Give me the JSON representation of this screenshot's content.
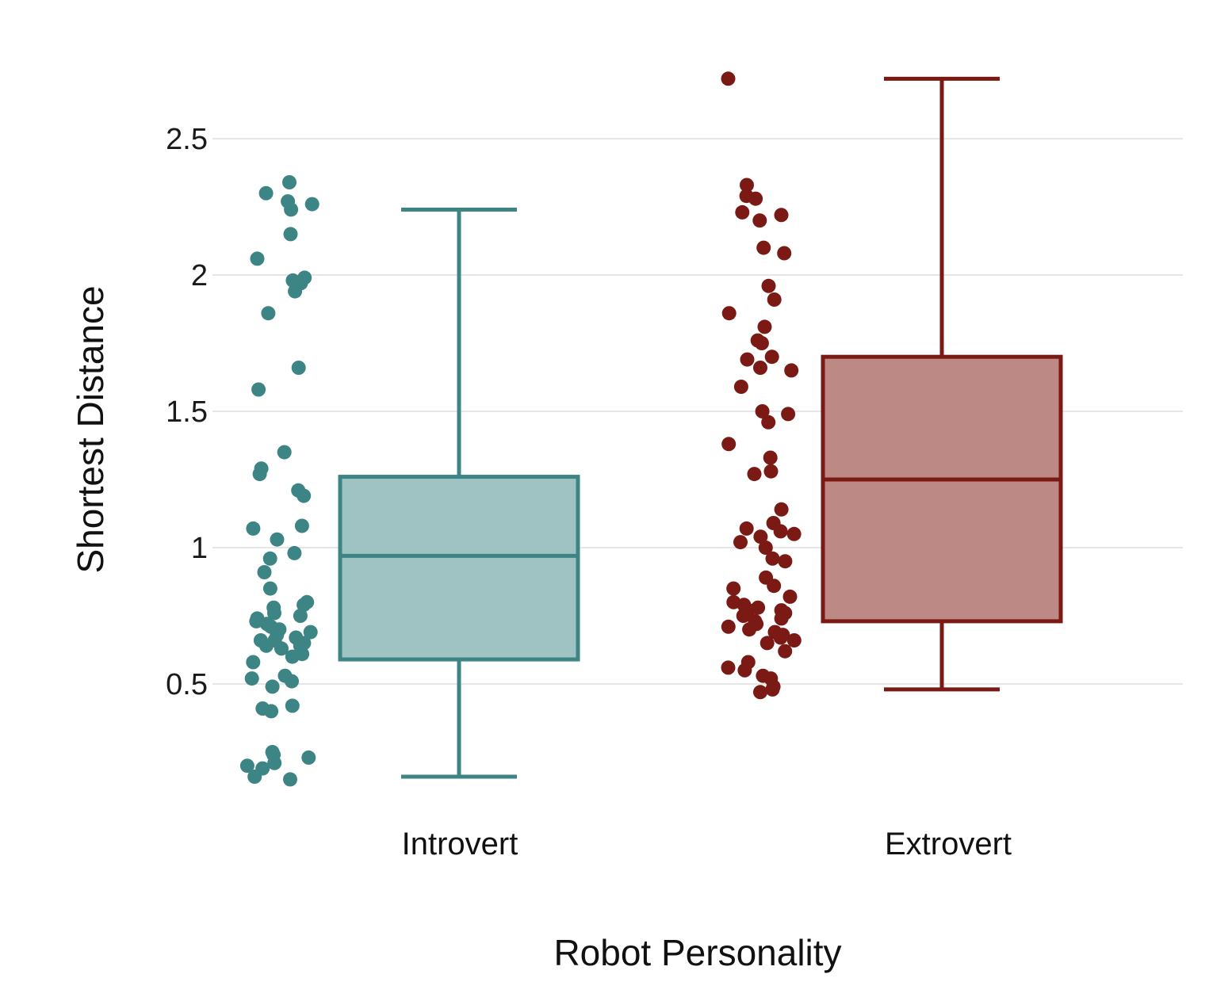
{
  "chart_data": {
    "type": "box",
    "xlabel": "Robot Personality",
    "ylabel": "Shortest Distance",
    "ylim": [
      0.1,
      2.82
    ],
    "yticks": [
      0.5,
      1,
      1.5,
      2,
      2.5
    ],
    "ytick_labels": [
      "0.5",
      "1",
      "1.5",
      "2",
      "2.5"
    ],
    "grid": true,
    "categories": [
      "Introvert",
      "Extrovert"
    ],
    "series": [
      {
        "category": "Introvert",
        "color": "#3d8585",
        "fill": "#9fc2c2",
        "box": {
          "whisker_low": 0.16,
          "q1": 0.59,
          "median": 0.97,
          "q3": 1.26,
          "whisker_high": 2.24
        },
        "points": [
          2.34,
          2.3,
          2.27,
          2.26,
          2.24,
          2.15,
          2.06,
          1.99,
          1.98,
          1.97,
          1.94,
          1.86,
          1.66,
          1.58,
          1.35,
          1.29,
          1.27,
          1.21,
          1.19,
          1.08,
          1.07,
          1.03,
          0.98,
          0.96,
          0.91,
          0.85,
          0.8,
          0.79,
          0.78,
          0.76,
          0.75,
          0.74,
          0.73,
          0.72,
          0.71,
          0.7,
          0.69,
          0.68,
          0.67,
          0.66,
          0.66,
          0.65,
          0.64,
          0.64,
          0.63,
          0.61,
          0.6,
          0.58,
          0.53,
          0.52,
          0.51,
          0.49,
          0.42,
          0.41,
          0.4,
          0.25,
          0.24,
          0.23,
          0.21,
          0.2,
          0.19,
          0.16,
          0.15
        ]
      },
      {
        "category": "Extrovert",
        "color": "#7b1a14",
        "fill": "#bd8985",
        "box": {
          "whisker_low": 0.48,
          "q1": 0.73,
          "median": 1.25,
          "q3": 1.7,
          "whisker_high": 2.72
        },
        "points": [
          2.72,
          2.33,
          2.29,
          2.28,
          2.23,
          2.22,
          2.2,
          2.1,
          2.08,
          1.96,
          1.91,
          1.86,
          1.81,
          1.76,
          1.75,
          1.7,
          1.69,
          1.66,
          1.65,
          1.59,
          1.5,
          1.49,
          1.46,
          1.38,
          1.33,
          1.28,
          1.27,
          1.14,
          1.09,
          1.07,
          1.06,
          1.05,
          1.04,
          1.02,
          1.0,
          0.96,
          0.95,
          0.89,
          0.86,
          0.85,
          0.82,
          0.8,
          0.79,
          0.78,
          0.77,
          0.77,
          0.76,
          0.75,
          0.74,
          0.73,
          0.72,
          0.71,
          0.7,
          0.69,
          0.68,
          0.67,
          0.66,
          0.65,
          0.62,
          0.58,
          0.56,
          0.55,
          0.53,
          0.52,
          0.49,
          0.48,
          0.47
        ]
      }
    ]
  }
}
